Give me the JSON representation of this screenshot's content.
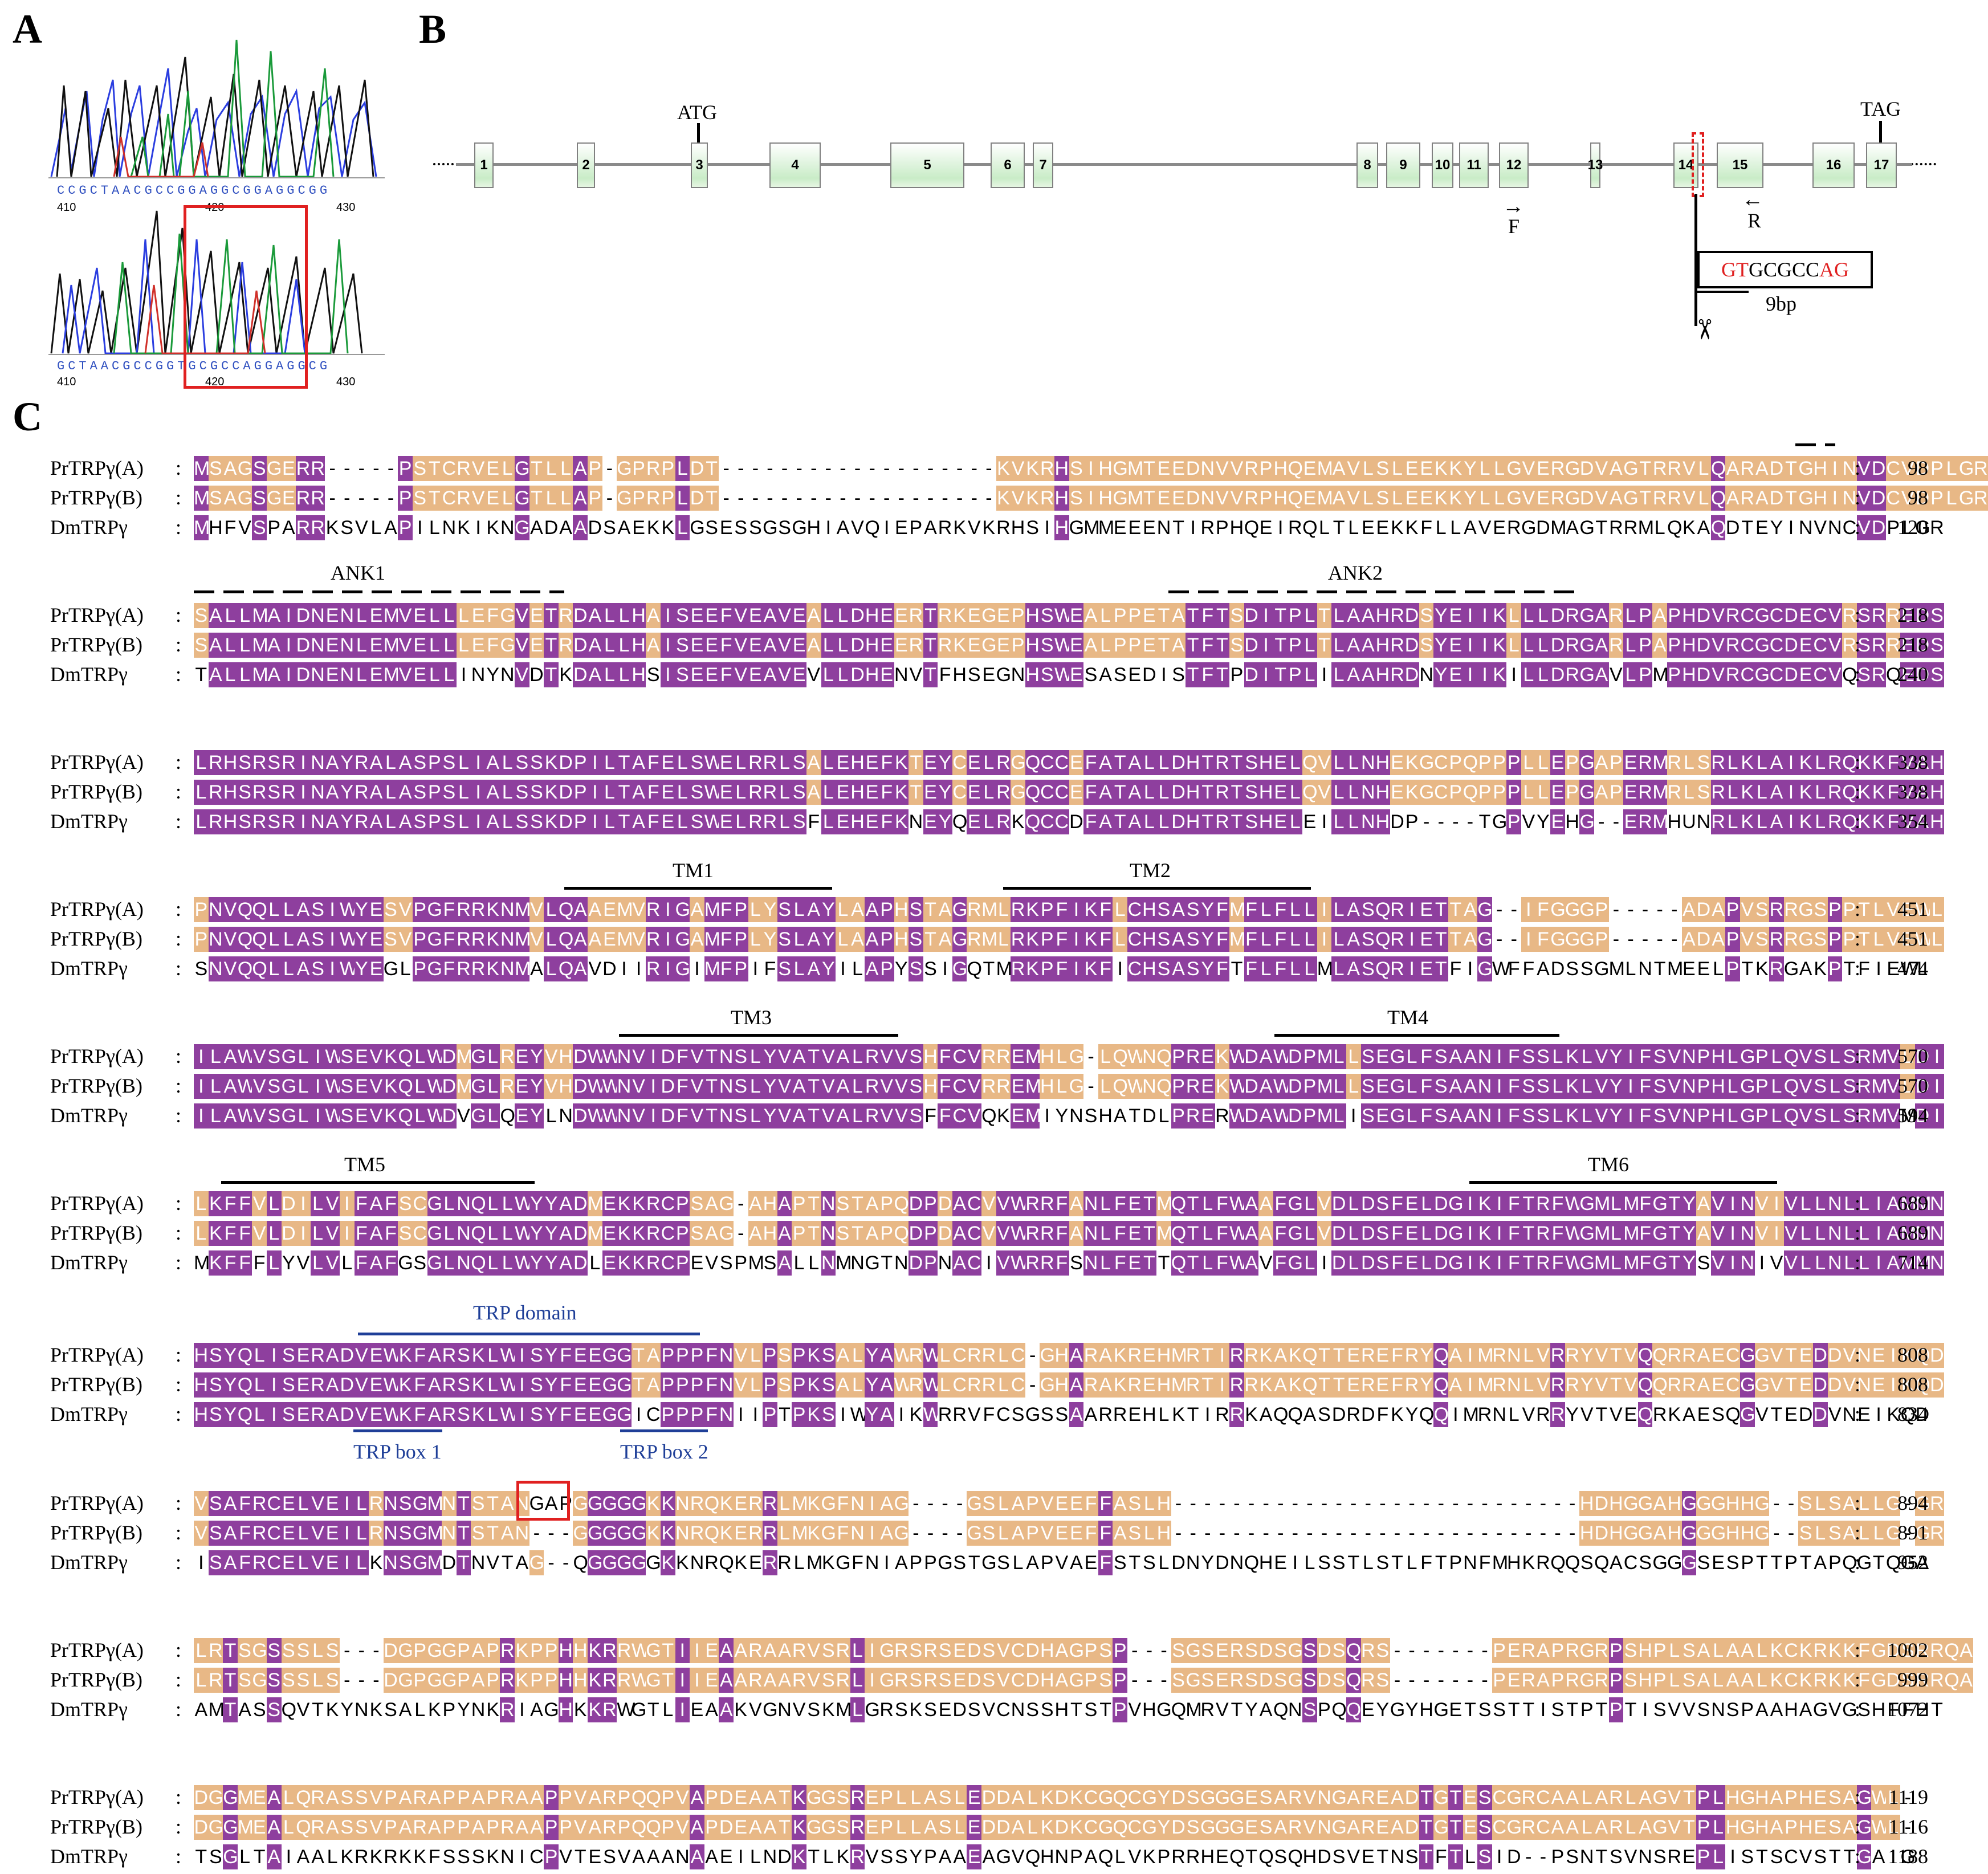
{
  "panels": {
    "a": "A",
    "b": "B",
    "c": "C"
  },
  "chromatogram_top": {
    "bases": "CCGCTAACGCCGGAGGCGGAGGCGG",
    "ticks": [
      "410",
      "420",
      "430"
    ]
  },
  "chromatogram_bottom": {
    "bases": "GCTAACGCCGGTGCGCCAGGAGGCG",
    "ticks": [
      "410",
      "420",
      "430"
    ]
  },
  "gene": {
    "atg": "ATG",
    "tag": "TAG",
    "exons": [
      "1",
      "2",
      "3",
      "4",
      "5",
      "6",
      "7",
      "8",
      "9",
      "10",
      "11",
      "12",
      "13",
      "14",
      "15",
      "16",
      "17"
    ],
    "primer_f": "F",
    "primer_r": "R",
    "insert_red1": "GT",
    "insert_black": "GCGCC",
    "insert_red2": "AG",
    "insert_len": "9bp"
  },
  "alignment": {
    "names": [
      "PrTRPγ(A)",
      "PrTRPγ(B)",
      "DmTRPγ"
    ],
    "blocks": [
      {
        "num": [
          "98",
          "98",
          "120"
        ],
        "seq": [
          "MSAGSGERR-----PSTCRVELGTLLAP-GPRPLDT-------------------KVKRHSIHGMTEEDNVVRPHQEMAVLSLEEKKYLLGVERGDVAGTRRVLQARADTGHINVDCVDPLGR",
          "MSAGSGERR-----PSTCRVELGTLLAP-GPRPLDT-------------------KVKRHSIHGMTEEDNVVRPHQEMAVLSLEEKKYLLGVERGDVAGTRRVLQARADTGHINVDCVDPLGR",
          "MHFVSPARRKSVLAPILNKIKNGADAADSAEKKLGSESSGSGHIAVQIEPARKVKRHSIHGMMEEENTIRPHQEIRQLTLEEKKFLLAVERGDMAGTRRMLQKAQDTEYINVNCVDPLGR"
        ]
      },
      {
        "num": [
          "218",
          "218",
          "240"
        ],
        "seq": [
          "SALLMAIDNENLEMVELLLEFGVETRDALLHAISEEFVEAVEALLDHEERTRKEGEPHSWEALPPETATFTSDITPLTLAAHRDSYEIIKLLLDRGARLPAPHDVRCGCDECVRSRREDS",
          "SALLMAIDNENLEMVELLLEFGVETRDALLHAISEEFVEAVEALLDHEERTRKEGEPHSWEALPPETATFTSDITPLTLAAHRDSYEIIKLLLDRGARLPAPHDVRCGCDECVRSRREDS",
          "TALLMAIDNENLEMVELLINYNVDTKDALLHSISEEFVEAVEVLLDHENVTFHSEGNHSWESASEDISTFTPDITPLILAAHRDNYEIIKILLDRGAVLPMPHDVRCGCDECVQSRQEDS"
        ]
      },
      {
        "num": [
          "338",
          "338",
          "354"
        ],
        "seq": [
          "LRHSRSRINAYRALASPSLIALSSKDPILTAFELSWELRRLSALEHEFKTEYCELRGQCCEFATALLDHTRTSHELQVLLNHEKGCPQPPPLLEPGAPERMRLSRLKLAIKLRQKKFVAH",
          "LRHSRSRINAYRALASPSLIALSSKDPILTAFELSWELRRLSALEHEFKTEYCELRGQCCEFATALLDHTRTSHELQVLLNHEKGCPQPPPLLEPGAPERMRLSRLKLAIKLRQKKFVAH",
          "LRHSRSRINAYRALASPSLIALSSKDPILTAFELSWELRRLSFLEHEFKNEYQELRKQCCDFATALLDHTRTSHELEILLNHDP----TGPVYEHG--ERMHUNRLKLAIKLRQKKFVAH"
        ]
      },
      {
        "num": [
          "451",
          "451",
          "474"
        ],
        "seq": [
          "PNVQQLLASIWYESVPGFRRKNMVLQAAEMVRIGAMFPLYSLAYLAAPHSTAGRMLRKPFIKFLCHSASYFMFLFLLILASQRIETTAG--IFGGGP-----ADAPVSRRGSPPTLVEWL",
          "PNVQQLLASIWYESVPGFRRKNMVLQAAEMVRIGAMFPLYSLAYLAAPHSTAGRMLRKPFIKFLCHSASYFMFLFLLILASQRIETTAG--IFGGGP-----ADAPVSRRGSPPTLVEWL",
          "SNVQQLLASIWYEGLPGFRRKNMALQAVDIIRIGIMFPIFSLAYILAPYSSIGQTMRKPFIKFICHSASYFTFLFLLMLASQRIETFIGWFFADSSGMLNTMEELPTKRGAKPTFIEWL"
        ]
      },
      {
        "num": [
          "570",
          "570",
          "594"
        ],
        "seq": [
          "ILAWVSGLIWSEVKQLWDMGLREYVHDWWNVIDFVTNSLYVATVALRVVSHFCVRREMHLG-LQWNQPREKWDAWDPMLLSEGLFSAANIFSSLKLVYIFSVNPHLGPLQVSLSRMVLDI",
          "ILAWVSGLIWSEVKQLWDMGLREYVHDWWNVIDFVTNSLYVATVALRVVSHFCVRREMHLG-LQWNQPREKWDAWDPMLLSEGLFSAANIFSSLKLVYIFSVNPHLGPLQVSLSRMVLDI",
          "ILAWVSGLIWSEVKQLWDVGLQEYLNDWWNVIDFVTNSLYVATVALRVVSFFCVQKEMIYNSHATDLPRERWDAWDPMLISEGLFSAANIFSSLKLVYIFSVNPHLGPLQVSLSRMVMDI"
        ]
      },
      {
        "num": [
          "689",
          "689",
          "714"
        ],
        "seq": [
          "LKFFVLDILVIFAFSCGLNQLLWYYADMEKKRCPSAG-AHAPTNSTAPQDPDACVVWRRFANLFETMQTLFWAAFGLVDLDSFELDGIKIFTRFWGMLMFGTYAVINVIVLLNLLIAMMN",
          "LKFFVLDILVIFAFSCGLNQLLWYYADMEKKRCPSAG-AHAPTNSTAPQDPDACVVWRRFANLFETMQTLFWAAFGLVDLDSFELDGIKIFTRFWGMLMFGTYAVINVIVLLNLLIAMMN",
          "MKFFFLYVLVLFAFGSGLNQLLWYYADLEKKRCPEVSPMSALLNMNGTNDPNACIVWRRFSNLFETTQTLFWAVFGLIDLDSFELDGIKIFTRFWGMLMFGTYSVINIVVLLNLLIAMMN"
        ]
      },
      {
        "num": [
          "808",
          "808",
          "834"
        ],
        "seq": [
          "HSYQLISERADVEWKFARSKLWISYFEEGGTAPPPFNVLPSPKSALYAWRWLCRRLC-GHARAKREHMRTIRRKAKQTTEREFRYQAIMRNLVRRYVTVQQRRAECGGVTEDDVNEIKQD",
          "HSYQLISERADVEWKFARSKLWISYFEEGGTAPPPFNVLPSPKSALYAWRWLCRRLC-GHARAKREHMRTIRRKAKQTTEREFRYQAIMRNLVRRYVTVQQRRAECGGVTEDDVNEIKQD",
          "HSYQLISERADVEWKFARSKLWISYFEEGGICPPPFNIIPTPKSIWYAIKWRRVFCSGSSAARREHLKTIRRKAQQASDRDFKYQQIMRNLVRRYVTVEQRKAESQGVTEDDVNEIKQD"
        ]
      },
      {
        "num": [
          "894",
          "891",
          "952"
        ],
        "seq": [
          "VSAFRCELVEILRNSGMNTSTANGAPGGGGGKKNRQKERRLMKGFNIAG----GSLAPVEEFFASLH----------------------------HDHGGAHGGGHHG--SLSALLG-GR",
          "VSAFRCELVEILRNSGMNTSTAN---GGGGGKKNRQKERRLMKGFNIAG----GSLAPVEEFFASLH----------------------------HDHGGAHGGGHHG--SLSALLG-GR",
          "ISAFRCELVEILKNSGMDTNVTAG--QGGGGGKKNRQKERRLMKGFNIAPPGSTGSLAPVAEFSTSLDNYDNQHEILSSTLSTLFTPNFMHKRQQSQACSGGGSESPTTPTAPQGTQGA"
        ]
      },
      {
        "num": [
          "1002",
          "999",
          "1072"
        ],
        "seq": [
          "LRTSGSSSLS---DGPGGPAPRKPPHHKRRWGTIIEAARAARVSRLIGRSRSEDSVCDHAGPSP---SGSERSDSGSDSQRS-------PERAPRGRPSHPLSALAALKCKRKKFGDSRRQA",
          "LRTSGSSSLS---DGPGGPAPRKPPHHKRRWGTIIEAARAARVSRLIGRSRSEDSVCDHAGPSP---SGSERSDSGSDSQRS-------PERAPRGRPSHPLSALAALKCKRKKFGDSRRQA",
          "AMTASSQVTKYNKSALKPYNKRIAGHKKRWGTLIEAAKVGNVSKMLGRSKSEDSVCNSSHTSTPVHGQMRVTYAQNSPQQEYGYHGETSSTTISTPTPTISVVSNSPAAHAGVGSHFFHT"
        ]
      },
      {
        "num": [
          "1119",
          "1116",
          "1188"
        ],
        "seq": [
          "DGGMEALQRASSVPARAPPAPRAAPPVARPQQPVAPDEAATKGGSREPLLASLEDDALKDKCGQCGYDSGGGESARVNGAREADTGTESCGRCAALARLAGVTPLHGHAPHESAGWL-",
          "DGGMEALQRASSVPARAPPAPRAAPPVARPQQPVAPDEAATKGGSREPLLASLEDDALKDKCGQCGYDSGGGESARVNGAREADTGTESCGRCAALARLAGVTPLHGHAPHESAGWL-",
          "TSGLTAIAALKRKRKKFSSSKNICPVTESVAAANAAEILNDKTLKRVSSYPAAEAGVQHNPAQLVKPRRHEQTQSQHDSVETNSTFTLSID--PSNTSVNSREPLISTSCVSTTGAIG"
        ]
      }
    ]
  },
  "features": {
    "ank1": "ANK1",
    "ank2": "ANK2",
    "tm1": "TM1",
    "tm2": "TM2",
    "tm3": "TM3",
    "tm4": "TM4",
    "tm5": "TM5",
    "tm6": "TM6",
    "trp_domain": "TRP domain",
    "trp_box1": "TRP box 1",
    "trp_box2": "TRP box 2"
  },
  "colors": {
    "identical": "#8e3f9e",
    "similar": "#e8b886",
    "highlight": "#e02020",
    "feature_blue": "#1f3f98"
  }
}
